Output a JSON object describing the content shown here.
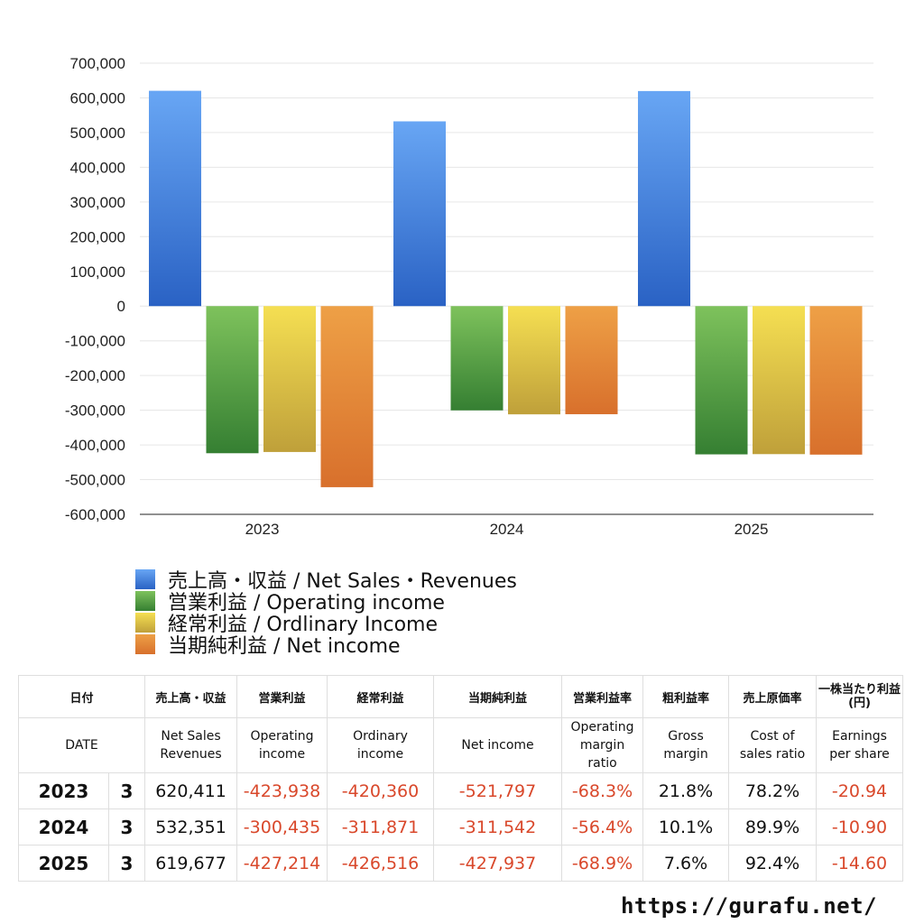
{
  "chart_data": {
    "type": "bar",
    "categories": [
      "2023",
      "2024",
      "2025"
    ],
    "series": [
      {
        "name": "売上高・収益 / Net Sales・Revenues",
        "color": "#3e7ee0",
        "values": [
          620411,
          532351,
          619677
        ]
      },
      {
        "name": "営業利益 / Operating income",
        "color": "#4a9a3e",
        "values": [
          -423938,
          -300435,
          -427214
        ]
      },
      {
        "name": "経常利益 / Ordlinary Income",
        "color": "#d9b93a",
        "values": [
          -420360,
          -311871,
          -426516
        ]
      },
      {
        "name": "当期純利益 / Net income",
        "color": "#e07a30",
        "values": [
          -521797,
          -311542,
          -427937
        ]
      }
    ],
    "yticks": [
      "700,000",
      "600,000",
      "500,000",
      "400,000",
      "300,000",
      "200,000",
      "100,000",
      "0",
      "-100,000",
      "-200,000",
      "-300,000",
      "-400,000",
      "-500,000",
      "-600,000"
    ],
    "ylim": [
      -600000,
      700000
    ],
    "grid": true,
    "legend_position": "bottom"
  },
  "table": {
    "headers_jp": [
      "日付",
      "売上高・収益",
      "営業利益",
      "経常利益",
      "当期純利益",
      "営業利益率",
      "粗利益率",
      "売上原価率",
      "一株当たり利益",
      "(円)"
    ],
    "headers_en": {
      "date": "DATE",
      "sales_1": "Net Sales",
      "sales_2": "Revenues",
      "op_1": "Operating",
      "op_2": "income",
      "ord_1": "Ordinary",
      "ord_2": "income",
      "net": "Net income",
      "opm_1": "Operating",
      "opm_2": "margin",
      "opm_3": "ratio",
      "gm_1": "Gross",
      "gm_2": "margin",
      "cos_1": "Cost of",
      "cos_2": "sales ratio",
      "eps_1": "Earnings",
      "eps_2": "per share"
    },
    "rows": [
      {
        "year": "2023",
        "month": "3",
        "sales": "620,411",
        "op": "-423,938",
        "ord": "-420,360",
        "net": "-521,797",
        "opm": "-68.3%",
        "gm": "21.8%",
        "cos": "78.2%",
        "eps": "-20.94"
      },
      {
        "year": "2024",
        "month": "3",
        "sales": "532,351",
        "op": "-300,435",
        "ord": "-311,871",
        "net": "-311,542",
        "opm": "-56.4%",
        "gm": "10.1%",
        "cos": "89.9%",
        "eps": "-10.90"
      },
      {
        "year": "2025",
        "month": "3",
        "sales": "619,677",
        "op": "-427,214",
        "ord": "-426,516",
        "net": "-427,937",
        "opm": "-68.9%",
        "gm": "7.6%",
        "cos": "92.4%",
        "eps": "-14.60"
      }
    ]
  },
  "footer": {
    "site": "https://gurafu.net/"
  }
}
